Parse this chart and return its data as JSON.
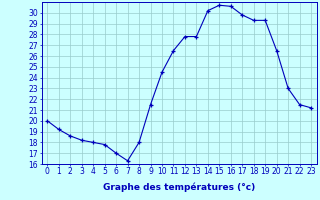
{
  "hours": [
    0,
    1,
    2,
    3,
    4,
    5,
    6,
    7,
    8,
    9,
    10,
    11,
    12,
    13,
    14,
    15,
    16,
    17,
    18,
    19,
    20,
    21,
    22,
    23
  ],
  "temps": [
    20.0,
    19.2,
    18.6,
    18.2,
    18.0,
    17.8,
    17.0,
    16.3,
    18.0,
    21.5,
    24.5,
    26.5,
    27.8,
    27.8,
    30.2,
    30.7,
    30.6,
    29.8,
    29.3,
    29.3,
    26.5,
    23.0,
    21.5,
    21.2
  ],
  "xlabel": "Graphe des températures (°c)",
  "ylim": [
    16,
    31
  ],
  "xlim": [
    -0.5,
    23.5
  ],
  "yticks": [
    16,
    17,
    18,
    19,
    20,
    21,
    22,
    23,
    24,
    25,
    26,
    27,
    28,
    29,
    30
  ],
  "xticks": [
    0,
    1,
    2,
    3,
    4,
    5,
    6,
    7,
    8,
    9,
    10,
    11,
    12,
    13,
    14,
    15,
    16,
    17,
    18,
    19,
    20,
    21,
    22,
    23
  ],
  "line_color": "#0000bb",
  "marker": "+",
  "bg_color": "#ccffff",
  "grid_color": "#99cccc",
  "axis_label_color": "#0000bb",
  "tick_label_color": "#0000bb",
  "xlabel_fontsize": 6.5,
  "tick_fontsize": 5.5
}
